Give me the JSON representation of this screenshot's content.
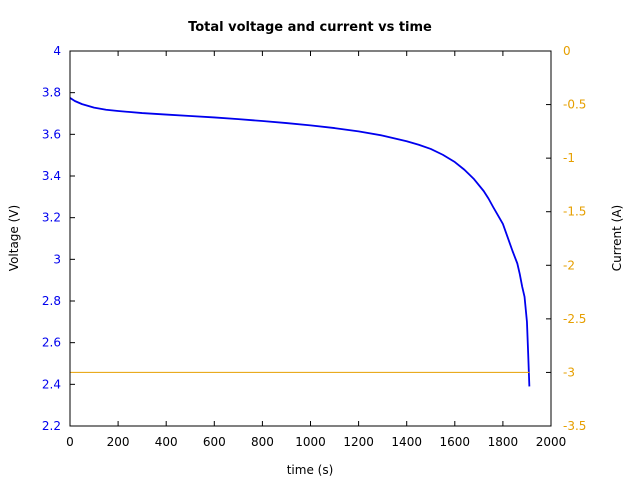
{
  "chart_data": {
    "type": "line",
    "title": "Total voltage and current vs time",
    "xlabel": "time (s)",
    "ylabel_left": "Voltage (V)",
    "ylabel_right": "Current (A)",
    "xlim": [
      0,
      2000
    ],
    "ylim_left": [
      2.2,
      4
    ],
    "ylim_right": [
      -3.5,
      0
    ],
    "x_ticks": [
      "0",
      "200",
      "400",
      "600",
      "800",
      "1000",
      "1200",
      "1400",
      "1600",
      "1800",
      "2000"
    ],
    "y_left_ticks": [
      "2.2",
      "2.4",
      "2.6",
      "2.8",
      "3",
      "3.2",
      "3.4",
      "3.6",
      "3.8",
      "4"
    ],
    "y_right_ticks": [
      "-3.5",
      "-3",
      "-2.5",
      "-2",
      "-1.5",
      "-1",
      "-0.5",
      "0"
    ],
    "grid": false,
    "colors": {
      "voltage": "#0000ee",
      "current": "#e69f00",
      "left_axis_text": "#0000ee",
      "right_axis_text": "#e69f00"
    },
    "series": [
      {
        "axis": "left",
        "x": [
          0,
          20,
          50,
          100,
          150,
          200,
          300,
          400,
          500,
          600,
          700,
          800,
          900,
          1000,
          1100,
          1200,
          1300,
          1400,
          1450,
          1500,
          1550,
          1600,
          1640,
          1680,
          1720,
          1740,
          1760,
          1780,
          1800,
          1820,
          1840,
          1860,
          1870,
          1880,
          1890,
          1900,
          1905,
          1910
        ],
        "y": [
          3.775,
          3.76,
          3.745,
          3.728,
          3.718,
          3.712,
          3.702,
          3.695,
          3.688,
          3.681,
          3.673,
          3.664,
          3.654,
          3.643,
          3.63,
          3.614,
          3.594,
          3.567,
          3.55,
          3.53,
          3.502,
          3.467,
          3.43,
          3.385,
          3.328,
          3.292,
          3.25,
          3.21,
          3.17,
          3.105,
          3.04,
          2.98,
          2.93,
          2.87,
          2.82,
          2.7,
          2.55,
          2.39
        ]
      },
      {
        "axis": "right",
        "x": [
          0,
          1910
        ],
        "y": [
          -3,
          -3
        ]
      }
    ]
  }
}
